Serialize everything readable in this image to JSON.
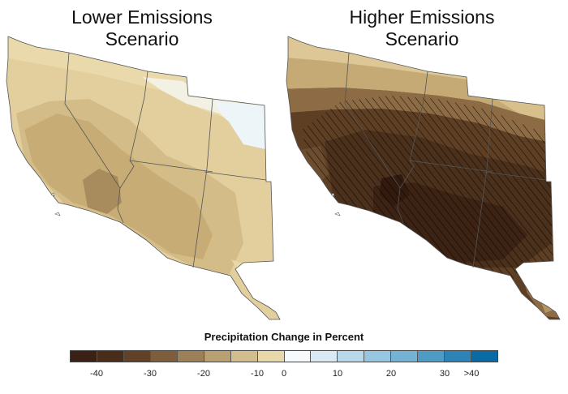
{
  "panels": [
    {
      "title": "Lower Emissions\nScenario"
    },
    {
      "title": "Higher Emissions\nScenario"
    }
  ],
  "legend": {
    "title": "Precipitation Change in Percent",
    "colors": [
      "#3b2113",
      "#4a2c1a",
      "#624128",
      "#7d5d3c",
      "#9b8058",
      "#b8a070",
      "#d2bd8c",
      "#e8d7a8",
      "#f6fafd",
      "#d9eaf4",
      "#b9d9ea",
      "#97c6e0",
      "#74b3d4",
      "#4c9cc6",
      "#2c84b6",
      "#0a6aa4"
    ],
    "ticks": [
      "-40",
      "-30",
      "-20",
      "-10",
      "0",
      "10",
      "20",
      "30",
      ">40"
    ],
    "tick_positions": [
      1,
      3,
      5,
      7,
      8,
      10,
      12,
      14,
      15
    ]
  }
}
